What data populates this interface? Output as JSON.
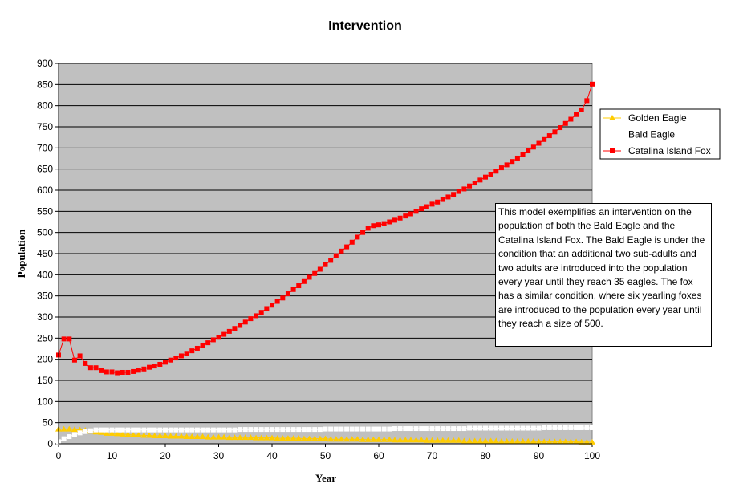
{
  "chart_data": {
    "type": "line",
    "title": "Intervention",
    "xlabel": "Year",
    "ylabel": "Population",
    "xlim": [
      0,
      100
    ],
    "ylim": [
      0,
      900
    ],
    "x_ticks": [
      0,
      10,
      20,
      30,
      40,
      50,
      60,
      70,
      80,
      90,
      100
    ],
    "y_ticks": [
      0,
      50,
      100,
      150,
      200,
      250,
      300,
      350,
      400,
      450,
      500,
      550,
      600,
      650,
      700,
      750,
      800,
      850,
      900
    ],
    "grid": "horizontal",
    "background_color": "#c0c0c0",
    "legend_position": "right",
    "x": [
      0,
      1,
      2,
      3,
      4,
      5,
      6,
      7,
      8,
      9,
      10,
      11,
      12,
      13,
      14,
      15,
      16,
      17,
      18,
      19,
      20,
      21,
      22,
      23,
      24,
      25,
      26,
      27,
      28,
      29,
      30,
      31,
      32,
      33,
      34,
      35,
      36,
      37,
      38,
      39,
      40,
      41,
      42,
      43,
      44,
      45,
      46,
      47,
      48,
      49,
      50,
      51,
      52,
      53,
      54,
      55,
      56,
      57,
      58,
      59,
      60,
      61,
      62,
      63,
      64,
      65,
      66,
      67,
      68,
      69,
      70,
      71,
      72,
      73,
      74,
      75,
      76,
      77,
      78,
      79,
      80,
      81,
      82,
      83,
      84,
      85,
      86,
      87,
      88,
      89,
      90,
      91,
      92,
      93,
      94,
      95,
      96,
      97,
      98,
      99,
      100
    ],
    "series": [
      {
        "name": "Golden Eagle",
        "color": "#ffcc00",
        "marker": "triangle",
        "values": [
          35,
          35,
          35,
          34,
          33,
          32,
          30,
          28,
          27,
          25,
          25,
          24,
          23,
          22,
          21,
          21,
          20,
          20,
          19,
          19,
          19,
          18,
          18,
          18,
          17,
          17,
          17,
          17,
          16,
          16,
          16,
          16,
          15,
          15,
          15,
          15,
          15,
          14,
          14,
          14,
          14,
          13,
          13,
          13,
          13,
          13,
          12,
          12,
          12,
          12,
          12,
          11,
          11,
          11,
          11,
          11,
          11,
          10,
          10,
          10,
          10,
          10,
          10,
          9,
          9,
          9,
          9,
          9,
          9,
          8,
          8,
          8,
          8,
          8,
          8,
          8,
          7,
          7,
          7,
          7,
          7,
          7,
          7,
          6,
          6,
          6,
          6,
          6,
          6,
          6,
          5,
          5,
          5,
          5,
          5,
          5,
          5,
          5,
          4,
          4,
          4
        ]
      },
      {
        "name": "Bald Eagle",
        "color": "#ffffff",
        "marker": "square",
        "values": [
          5,
          12,
          17,
          22,
          26,
          29,
          31,
          33,
          33,
          33,
          33,
          33,
          33,
          33,
          33,
          33,
          33,
          33,
          33,
          33,
          33,
          33,
          33,
          33,
          33,
          33,
          33,
          33,
          33,
          33,
          33,
          33,
          33,
          33,
          34,
          34,
          34,
          34,
          34,
          34,
          34,
          34,
          34,
          34,
          34,
          34,
          34,
          34,
          34,
          34,
          35,
          35,
          35,
          35,
          35,
          35,
          35,
          35,
          35,
          35,
          35,
          35,
          35,
          36,
          36,
          36,
          36,
          36,
          36,
          36,
          36,
          36,
          36,
          36,
          36,
          36,
          36,
          37,
          37,
          37,
          37,
          37,
          37,
          37,
          37,
          37,
          37,
          37,
          37,
          37,
          37,
          38,
          38,
          38,
          38,
          38,
          38,
          38,
          38,
          38,
          38
        ]
      },
      {
        "name": "Catalina Island Fox",
        "color": "#ff0000",
        "marker": "square",
        "values": [
          210,
          248,
          248,
          198,
          208,
          190,
          180,
          180,
          173,
          170,
          170,
          168,
          169,
          169,
          171,
          174,
          177,
          181,
          184,
          188,
          193,
          198,
          203,
          208,
          214,
          220,
          226,
          233,
          239,
          246,
          252,
          259,
          266,
          273,
          280,
          288,
          296,
          303,
          311,
          320,
          328,
          337,
          345,
          355,
          365,
          374,
          384,
          394,
          403,
          413,
          424,
          434,
          445,
          456,
          466,
          477,
          489,
          500,
          510,
          516,
          518,
          521,
          525,
          529,
          534,
          539,
          544,
          550,
          556,
          561,
          567,
          572,
          578,
          584,
          590,
          597,
          603,
          610,
          617,
          624,
          631,
          638,
          645,
          653,
          660,
          668,
          676,
          684,
          693,
          702,
          711,
          720,
          729,
          738,
          748,
          758,
          768,
          779,
          790,
          812,
          851
        ]
      }
    ],
    "annotation": "This model exemplifies an intervention on the population of both the Bald Eagle and the Catalina Island Fox. The Bald Eagle is under the condition that an additional two sub-adults and two adults are introduced into the population every year until they reach 35 eagles. The fox has a similar condition, where six yearling foxes are introduced to the population every year until they reach a size of 500."
  }
}
